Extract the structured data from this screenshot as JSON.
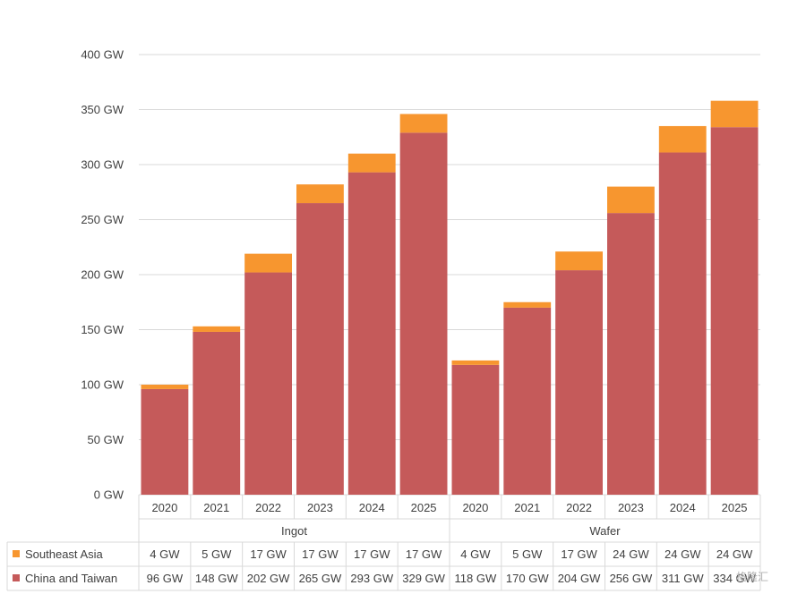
{
  "chart_data": {
    "type": "bar",
    "stacked": true,
    "title": "",
    "xlabel": "",
    "ylabel": "",
    "ylim": [
      0,
      400
    ],
    "yticks": [
      "0 GW",
      "50 GW",
      "100 GW",
      "150 GW",
      "200 GW",
      "250 GW",
      "300 GW",
      "350 GW",
      "400 GW"
    ],
    "ytick_values": [
      0,
      50,
      100,
      150,
      200,
      250,
      300,
      350,
      400
    ],
    "grid": true,
    "legend": "data-table",
    "groups": [
      {
        "label": "Ingot",
        "categories": [
          "2020",
          "2021",
          "2022",
          "2023",
          "2024",
          "2025"
        ]
      },
      {
        "label": "Wafer",
        "categories": [
          "2020",
          "2021",
          "2022",
          "2023",
          "2024",
          "2025"
        ]
      }
    ],
    "series": [
      {
        "name": "Southeast Asia",
        "color": "#f7962f",
        "values": [
          4,
          5,
          17,
          17,
          17,
          17,
          4,
          5,
          17,
          24,
          24,
          24
        ],
        "labels": [
          "4 GW",
          "5 GW",
          "17 GW",
          "17 GW",
          "17 GW",
          "17 GW",
          "4 GW",
          "5 GW",
          "17 GW",
          "24 GW",
          "24 GW",
          "24 GW"
        ]
      },
      {
        "name": "China and Taiwan",
        "color": "#c55a5a",
        "values": [
          96,
          148,
          202,
          265,
          293,
          329,
          118,
          170,
          204,
          256,
          311,
          334
        ],
        "labels": [
          "96 GW",
          "148 GW",
          "202 GW",
          "265 GW",
          "293 GW",
          "329 GW",
          "118 GW",
          "170 GW",
          "204 GW",
          "256 GW",
          "311 GW",
          "334 GW"
        ]
      }
    ]
  },
  "watermark": "格隆汇"
}
